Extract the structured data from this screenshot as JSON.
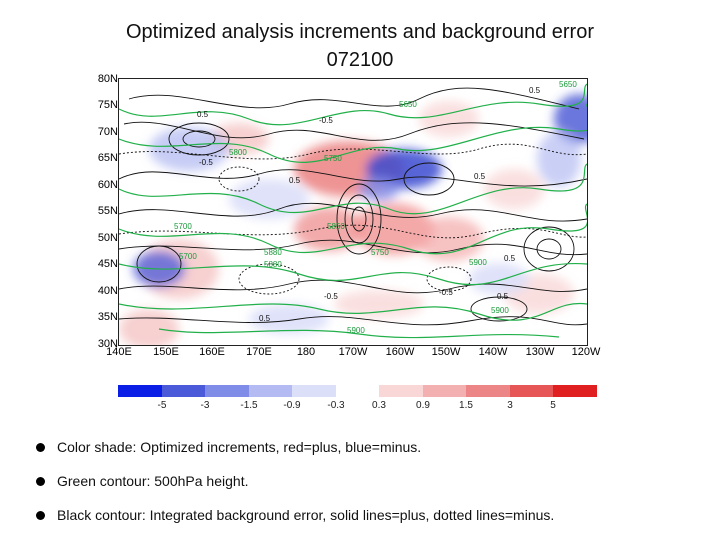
{
  "title_line1": "Optimized analysis increments and background error",
  "title_line2": "072100",
  "map": {
    "lat_labels": [
      "80N",
      "75N",
      "70N",
      "65N",
      "60N",
      "55N",
      "50N",
      "45N",
      "40N",
      "35N",
      "30N"
    ],
    "lon_labels": [
      "140E",
      "150E",
      "160E",
      "170E",
      "180",
      "170W",
      "160W",
      "150W",
      "140W",
      "130W",
      "120W"
    ],
    "contour_labels": [
      {
        "text": "5650",
        "color": "green"
      },
      {
        "text": "5650",
        "color": "green"
      },
      {
        "text": "0.5",
        "color": "black"
      },
      {
        "text": "0.5",
        "color": "black"
      },
      {
        "text": "-0.5",
        "color": "black"
      },
      {
        "text": "5800",
        "color": "green"
      },
      {
        "text": "5750",
        "color": "green"
      },
      {
        "text": "-0.5",
        "color": "black"
      },
      {
        "text": "0.5",
        "color": "black"
      },
      {
        "text": "0.5",
        "color": "black"
      },
      {
        "text": "5700",
        "color": "green"
      },
      {
        "text": "5700",
        "color": "green"
      },
      {
        "text": "5850",
        "color": "green"
      },
      {
        "text": "5880",
        "color": "green"
      },
      {
        "text": "5750",
        "color": "green"
      },
      {
        "text": "5880",
        "color": "green"
      },
      {
        "text": "5900",
        "color": "green"
      },
      {
        "text": "-0.5",
        "color": "black"
      },
      {
        "text": "0.5",
        "color": "black"
      },
      {
        "text": "5900",
        "color": "green"
      },
      {
        "text": "5900",
        "color": "green"
      },
      {
        "text": "0.5",
        "color": "black"
      },
      {
        "text": "-0.5",
        "color": "black"
      },
      {
        "text": "0.5",
        "color": "black"
      }
    ]
  },
  "colorbar": {
    "colors": [
      "#0a1ee6",
      "#4a5ad8",
      "#7f8ce8",
      "#b3bbf2",
      "#dcdff8",
      "#ffffff",
      "#f9d7d7",
      "#f2b0b0",
      "#ec8686",
      "#e65656",
      "#e02020"
    ],
    "ticks": [
      "-5",
      "-3",
      "-1.5",
      "-0.9",
      "-0.3",
      "0.3",
      "0.9",
      "1.5",
      "3",
      "5"
    ]
  },
  "bullets": [
    "Color shade: Optimized increments, red=plus, blue=minus.",
    "Green contour: 500hPa height.",
    "Black contour: Integrated background error, solid lines=plus, dotted lines=minus."
  ]
}
